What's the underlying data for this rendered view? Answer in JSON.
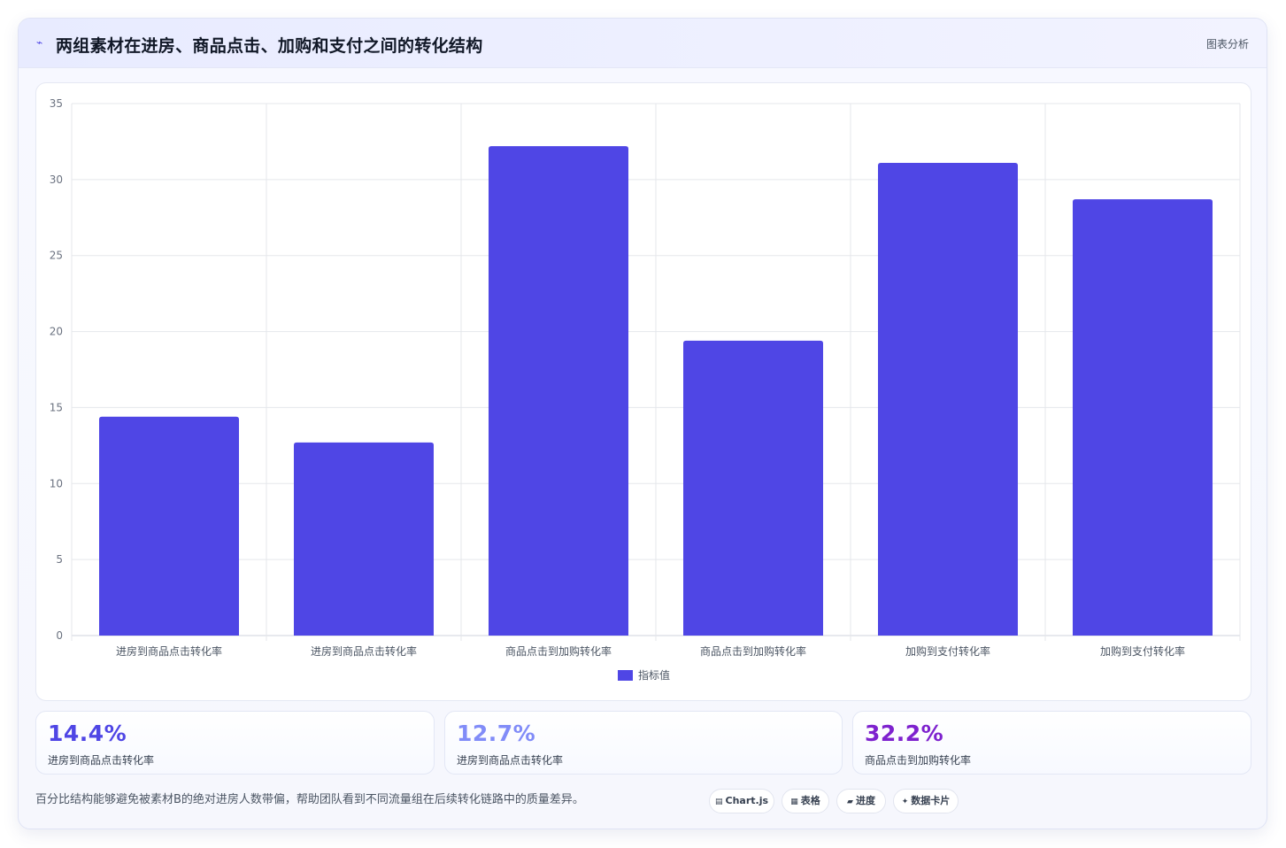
{
  "header": {
    "title": "两组素材在进房、商品点击、加购和支付之间的转化结构",
    "tag": "图表分析",
    "icon": "trend-icon"
  },
  "chart_data": {
    "type": "bar",
    "categories": [
      "进房到商品点击转化率",
      "进房到商品点击转化率",
      "商品点击到加购转化率",
      "商品点击到加购转化率",
      "加购到支付转化率",
      "加购到支付转化率"
    ],
    "series": [
      {
        "name": "指标值",
        "values": [
          14.4,
          12.7,
          32.2,
          19.4,
          31.1,
          28.7
        ],
        "color": "#4f46e5"
      }
    ],
    "yticks": [
      0,
      5,
      10,
      15,
      20,
      25,
      30,
      35
    ],
    "ylim": [
      0,
      35
    ],
    "grid": true,
    "legend": "bottom"
  },
  "stats": [
    {
      "value": "14.4%",
      "label": "进房到商品点击转化率",
      "color": "#4f46e5"
    },
    {
      "value": "12.7%",
      "label": "进房到商品点击转化率",
      "color": "#818cf8"
    },
    {
      "value": "32.2%",
      "label": "商品点击到加购转化率",
      "color": "#7e22ce"
    }
  ],
  "footnote": "百分比结构能够避免被素材B的绝对进房人数带偏，帮助团队看到不同流量组在后续转化链路中的质量差异。",
  "chips": [
    {
      "icon": "▤",
      "label": "Chart.js"
    },
    {
      "icon": "▦",
      "label": "表格"
    },
    {
      "icon": "▰",
      "label": "进度"
    },
    {
      "icon": "✦",
      "label": "数据卡片"
    }
  ]
}
